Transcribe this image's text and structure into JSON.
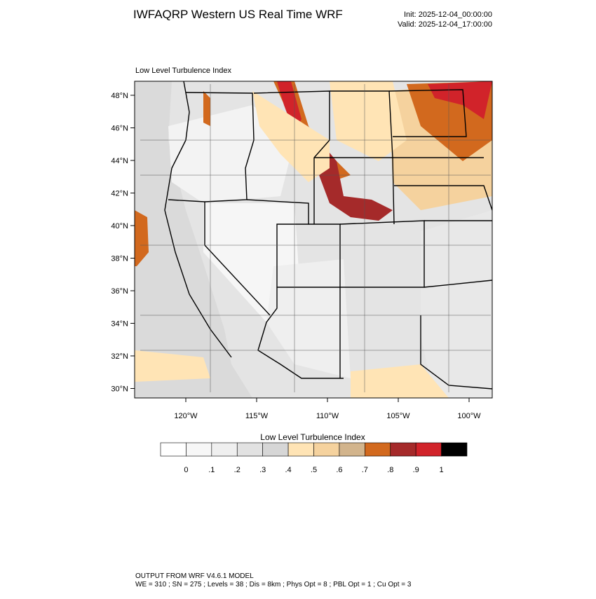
{
  "header": {
    "title": "IWFAQRP Western US Real Time WRF",
    "init": "Init: 2025-12-04_00:00:00",
    "valid": "Valid: 2025-12-04_17:00:00"
  },
  "map": {
    "title": "Low Level Turbulence Index",
    "lat_labels": [
      "48°N",
      "46°N",
      "44°N",
      "42°N",
      "40°N",
      "38°N",
      "36°N",
      "34°N",
      "32°N",
      "30°N"
    ],
    "lon_labels": [
      "120°W",
      "115°W",
      "110°W",
      "105°W",
      "100°W"
    ]
  },
  "colorbar": {
    "title": "Low Level Turbulence Index",
    "colors": [
      "#ffffff",
      "#f7f7f7",
      "#efefef",
      "#e2e2e2",
      "#d6d6d6",
      "#ffe4b5",
      "#f5d29e",
      "#d2b48c",
      "#d2691e",
      "#a52a2a",
      "#d1232a",
      "#000000"
    ],
    "labels": [
      "0",
      ".1",
      ".2",
      ".3",
      ".4",
      ".5",
      ".6",
      ".7",
      ".8",
      ".9",
      "1"
    ]
  },
  "footer": {
    "line1": "OUTPUT FROM WRF V4.6.1 MODEL",
    "line2": "WE = 310 ; SN = 275 ; Levels = 38 ; Dis = 8km ; Phys Opt = 8 ; PBL Opt = 1 ; Cu Opt = 3"
  }
}
